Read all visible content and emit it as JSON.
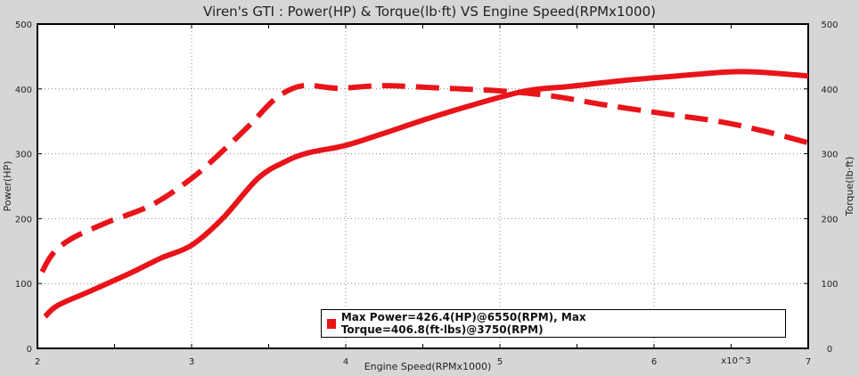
{
  "chart_data": {
    "type": "line",
    "title": "Viren's GTI : Power(HP) & Torque(lb·ft) VS Engine Speed(RPMx1000)",
    "xlabel": "Engine Speed(RPMx1000)",
    "x_multiplier_label": "x10^3",
    "ylabel_left": "Power(HP)",
    "ylabel_right": "Torque(lb·ft)",
    "xlim": [
      2,
      7
    ],
    "ylim": [
      0,
      500
    ],
    "xticks": [
      2,
      3,
      4,
      5,
      6,
      7
    ],
    "yticks": [
      0,
      100,
      200,
      300,
      400,
      500
    ],
    "grid": true,
    "legend_text": "Max Power=426.4(HP)@6550(RPM), Max Torque=406.8(ft·lbs)@3750(RPM)",
    "legend_placement": "bottom-right",
    "series": [
      {
        "id": "power",
        "style": "solid",
        "color": "#e8141a",
        "x": [
          2.05,
          2.13,
          2.34,
          2.62,
          2.8,
          3.0,
          3.2,
          3.43,
          3.6,
          3.75,
          4.0,
          4.24,
          4.53,
          4.82,
          5.17,
          5.46,
          5.8,
          6.15,
          6.47,
          6.67,
          7.0
        ],
        "y": [
          49,
          66,
          88,
          118,
          139,
          159,
          200,
          262,
          287,
          301,
          313,
          331,
          354,
          375,
          397,
          404,
          413,
          420,
          426,
          426,
          420
        ]
      },
      {
        "id": "torque",
        "style": "dashed",
        "color": "#e8141a",
        "x": [
          2.03,
          2.1,
          2.22,
          2.45,
          2.74,
          3.0,
          3.2,
          3.38,
          3.55,
          3.72,
          3.95,
          4.24,
          4.65,
          5.0,
          5.34,
          5.69,
          6.09,
          6.44,
          6.73,
          7.0
        ],
        "y": [
          118,
          146,
          169,
          194,
          221,
          262,
          304,
          345,
          386,
          405,
          401,
          405,
          401,
          397,
          389,
          375,
          361,
          349,
          334,
          317
        ]
      }
    ]
  }
}
